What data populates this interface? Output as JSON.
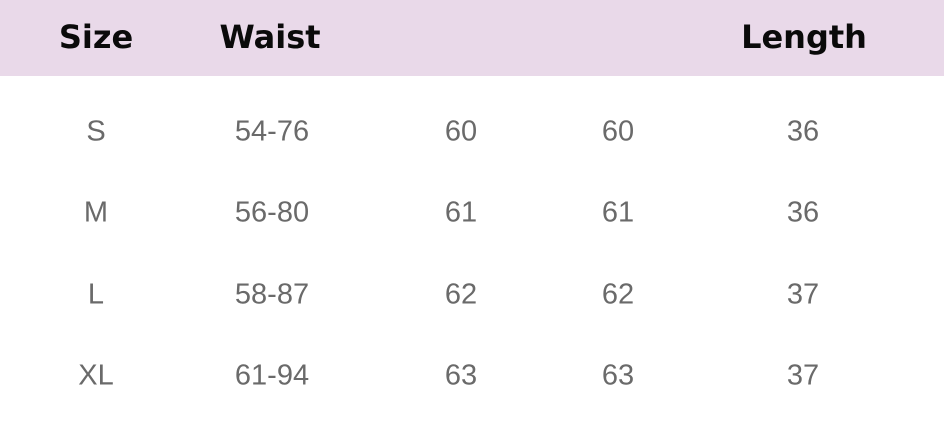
{
  "table": {
    "header_color": "#e9d9e9",
    "headers": [
      "Size",
      "Waist",
      "",
      "",
      "Length"
    ],
    "rows": [
      [
        "S",
        "54-76",
        "60",
        "60",
        "36"
      ],
      [
        "M",
        "56-80",
        "61",
        "61",
        "36"
      ],
      [
        "L",
        "58-87",
        "62",
        "62",
        "37"
      ],
      [
        "XL",
        "61-94",
        "63",
        "63",
        "37"
      ]
    ]
  }
}
